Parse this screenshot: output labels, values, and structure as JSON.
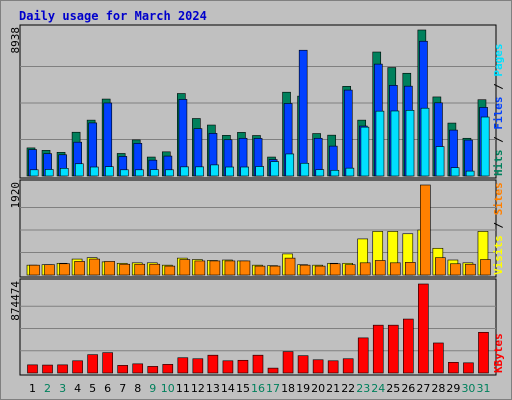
{
  "chart_data": {
    "type": "bar",
    "title": "Daily usage for March 2024",
    "categories": [
      "1",
      "2",
      "3",
      "4",
      "5",
      "6",
      "7",
      "8",
      "9",
      "10",
      "11",
      "12",
      "13",
      "14",
      "15",
      "16",
      "17",
      "18",
      "19",
      "20",
      "21",
      "22",
      "23",
      "24",
      "25",
      "26",
      "27",
      "28",
      "29",
      "30",
      "31"
    ],
    "weekend_days": [
      "2",
      "3",
      "9",
      "10",
      "16",
      "17",
      "23",
      "24",
      "30",
      "31"
    ],
    "colors": {
      "background": "#c0c0c0",
      "panel": "#c0c0c0",
      "grid": "#808080",
      "hits": "#00805c",
      "files": "#0040ff",
      "pages": "#00e0ff",
      "visits": "#ffff00",
      "sites": "#ff8000",
      "kbytes": "#ff0000",
      "title": "#0000cc",
      "weekday_label": "#000000",
      "weekend_label": "#00805c"
    },
    "panels": [
      {
        "id": "hits-files-pages",
        "max_label": "8938",
        "ylim": [
          0,
          8938
        ],
        "legend": [
          {
            "text": "Hits",
            "color": "#00805c"
          },
          {
            "text": " / ",
            "color": "#000000"
          },
          {
            "text": "Files",
            "color": "#0040ff"
          },
          {
            "text": " / ",
            "color": "#000000"
          },
          {
            "text": "Pages",
            "color": "#00e0ff"
          }
        ],
        "series": [
          {
            "name": "Hits",
            "values": [
              1720,
              1570,
              1450,
              2680,
              3420,
              4710,
              1380,
              2210,
              1160,
              1480,
              5050,
              3520,
              3120,
              2490,
              2670,
              2480,
              1160,
              5130,
              4890,
              2600,
              2500,
              5490,
              3420,
              7590,
              6640,
              6290,
              8938,
              4840,
              3240,
              2310,
              4670
            ]
          },
          {
            "name": "Files",
            "values": [
              1620,
              1370,
              1300,
              2070,
              3250,
              4470,
              1200,
              2000,
              970,
              1220,
              4690,
              2900,
              2610,
              2220,
              2310,
              2300,
              1010,
              4440,
              7700,
              2310,
              1830,
              5260,
              3060,
              6850,
              5550,
              5500,
              8250,
              4480,
              2810,
              2200,
              4200
            ]
          },
          {
            "name": "Pages",
            "values": [
              380,
              400,
              470,
              750,
              550,
              570,
              380,
              380,
              390,
              380,
              560,
              560,
              680,
              550,
              550,
              580,
              880,
              1350,
              780,
              390,
              350,
              480,
              2990,
              3970,
              3980,
              4020,
              4150,
              1800,
              510,
              300,
              3610
            ]
          }
        ]
      },
      {
        "id": "visits-sites",
        "max_label": "1920",
        "ylim": [
          0,
          1920
        ],
        "legend": [
          {
            "text": "Visits",
            "color": "#ffff00"
          },
          {
            "text": " / ",
            "color": "#000000"
          },
          {
            "text": "Sites",
            "color": "#ff8000"
          }
        ],
        "series": [
          {
            "name": "Visits",
            "values": [
              210,
              220,
              250,
              340,
              370,
              280,
              250,
              260,
              260,
              210,
              360,
              330,
              310,
              320,
              300,
              210,
              200,
              450,
              220,
              210,
              250,
              250,
              770,
              930,
              930,
              880,
              960,
              570,
              320,
              260,
              930
            ]
          },
          {
            "name": "Sites",
            "values": [
              210,
              220,
              240,
              290,
              340,
              290,
              230,
              230,
              230,
              190,
              330,
              300,
              300,
              300,
              300,
              190,
              190,
              360,
              210,
              190,
              240,
              220,
              260,
              310,
              260,
              270,
              1920,
              370,
              240,
              230,
              330
            ]
          }
        ]
      },
      {
        "id": "kbytes",
        "max_label": "874474",
        "ylim": [
          0,
          874474
        ],
        "legend": [
          {
            "text": "KBytes",
            "color": "#ff0000"
          }
        ],
        "series": [
          {
            "name": "KBytes",
            "values": [
              80000,
              78000,
              80000,
              120000,
              180000,
              200000,
              75000,
              90000,
              65000,
              85000,
              150000,
              140000,
              175000,
              120000,
              125000,
              175000,
              48000,
              210000,
              170000,
              130000,
              120000,
              140000,
              345000,
              470000,
              470000,
              530000,
              874474,
              295000,
              105000,
              100000,
              400000
            ]
          }
        ]
      }
    ]
  }
}
